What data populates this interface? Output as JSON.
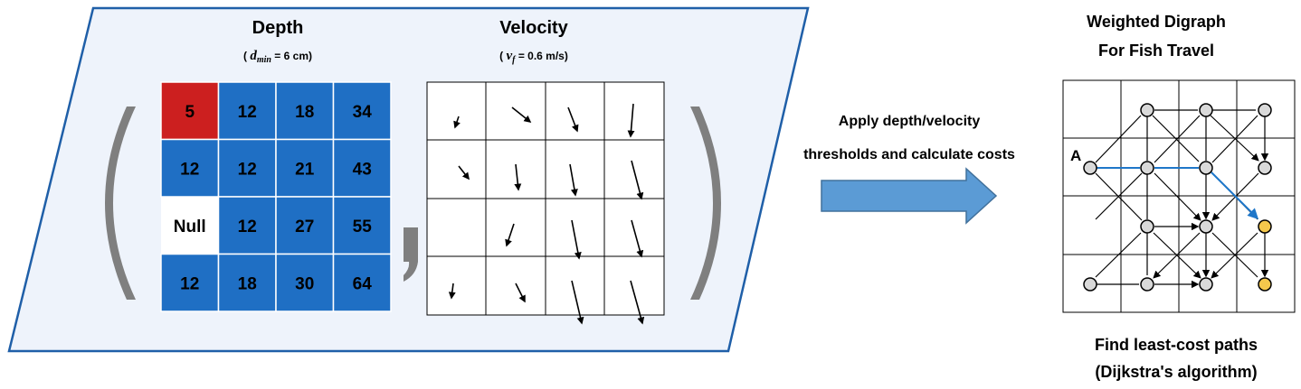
{
  "depth": {
    "title": "Depth",
    "constraint_symbol": "d",
    "constraint_subscript": "min",
    "constraint_value": " = 6 cm)",
    "grid": [
      [
        "5",
        "12",
        "18",
        "34"
      ],
      [
        "12",
        "12",
        "21",
        "43"
      ],
      [
        "Null",
        "12",
        "27",
        "55"
      ],
      [
        "12",
        "18",
        "30",
        "64"
      ]
    ],
    "colors": {
      "cell": "#1f6fc4",
      "below_threshold": "#cc1f1f",
      "null": "#ffffff"
    }
  },
  "velocity": {
    "title": "Velocity",
    "constraint_symbol": "v",
    "constraint_subscript": "f",
    "constraint_value": " = 0.6 m/s)"
  },
  "transform": {
    "line1": "Apply depth/velocity",
    "line2": "thresholds and calculate costs"
  },
  "digraph": {
    "title_line1": "Weighted Digraph",
    "title_line2": "For Fish Travel",
    "start_label": "A",
    "caption_line1": "Find least-cost paths",
    "caption_line2": "(Dijkstra's algorithm)",
    "colors": {
      "node": "#d9d9d9",
      "target": "#f5c84c",
      "path": "#1f77c9"
    }
  },
  "colors": {
    "panel_fill": "#eef3fb",
    "panel_border": "#1f5fa8",
    "arrow": "#5b9bd5",
    "paren": "#7f7f7f"
  }
}
